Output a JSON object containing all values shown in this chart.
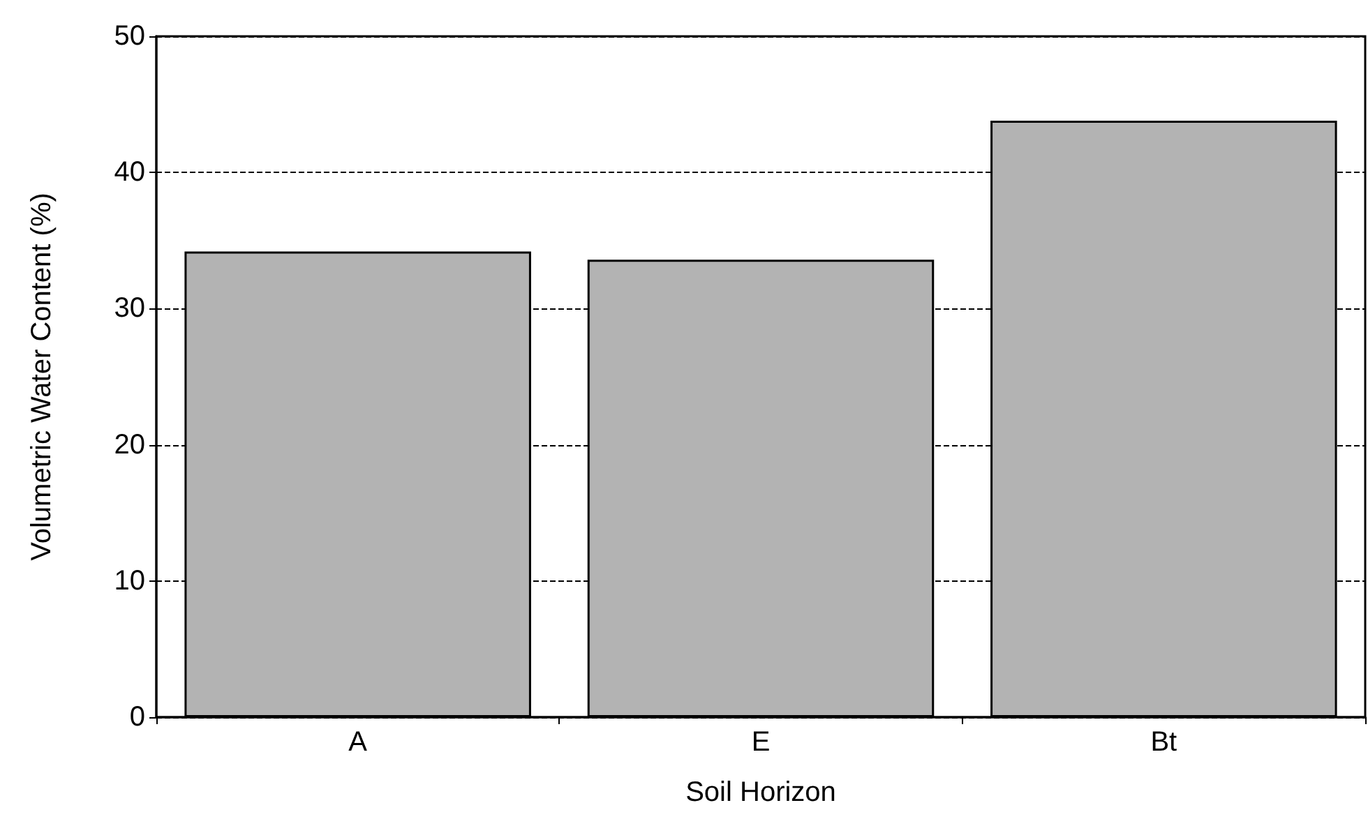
{
  "chart_data": {
    "type": "bar",
    "xlabel": "Soil Horizon",
    "ylabel": "Volumetric Water Content (%)",
    "categories": [
      "A",
      "E",
      "Bt"
    ],
    "values": [
      34.2,
      33.6,
      43.8
    ],
    "color": "#b3b3b3",
    "ylim": [
      0,
      50
    ],
    "yticks": [
      0,
      10,
      20,
      30,
      40,
      50
    ],
    "grid": "y"
  }
}
